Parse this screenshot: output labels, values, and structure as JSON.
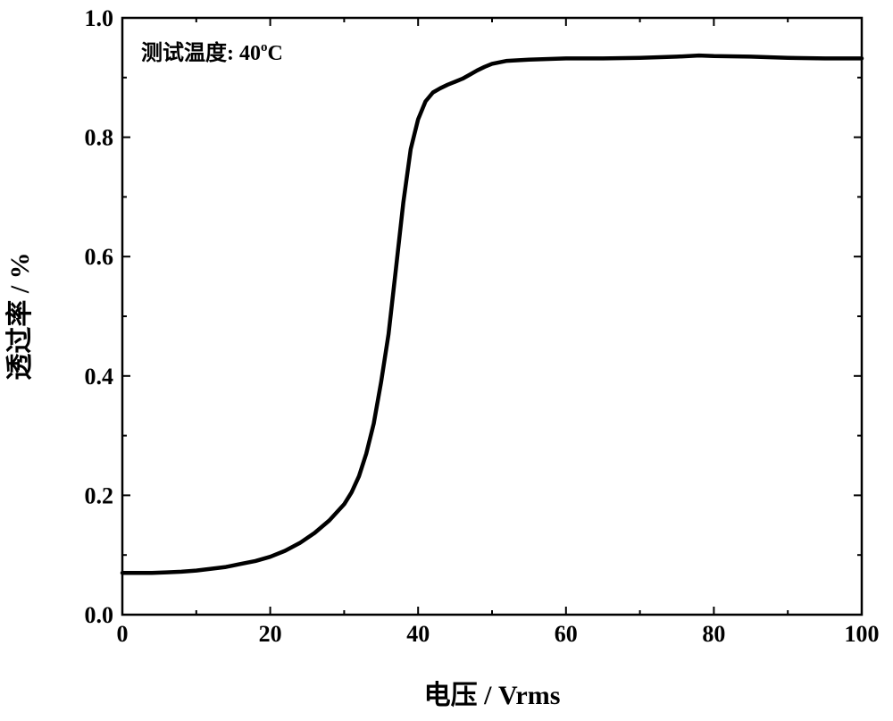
{
  "chart_data": {
    "type": "line",
    "title": "",
    "xlabel": "电压 / Vrms",
    "ylabel": "透过率 / %",
    "xlim": [
      0,
      100
    ],
    "ylim": [
      0.0,
      1.0
    ],
    "xticks": [
      "0",
      "20",
      "40",
      "60",
      "80",
      "100"
    ],
    "yticks": [
      "0.0",
      "0.2",
      "0.4",
      "0.6",
      "0.8",
      "1.0"
    ],
    "annotation": {
      "text": "测试温度: 40",
      "superscript": "o",
      "suffix": "C"
    },
    "grid": false,
    "legend": "none",
    "line_color": "#000000",
    "series": [
      {
        "x": [
          0,
          2,
          4,
          6,
          8,
          10,
          12,
          14,
          16,
          18,
          20,
          22,
          24,
          26,
          28,
          30,
          31,
          32,
          33,
          34,
          35,
          36,
          37,
          38,
          39,
          40,
          41,
          42,
          43,
          44,
          45,
          46,
          47,
          48,
          49,
          50,
          52,
          55,
          60,
          65,
          70,
          75,
          78,
          80,
          85,
          90,
          95,
          100
        ],
        "y": [
          0.07,
          0.07,
          0.07,
          0.071,
          0.072,
          0.074,
          0.077,
          0.08,
          0.085,
          0.09,
          0.097,
          0.107,
          0.12,
          0.137,
          0.158,
          0.185,
          0.205,
          0.232,
          0.27,
          0.32,
          0.39,
          0.47,
          0.58,
          0.69,
          0.78,
          0.83,
          0.86,
          0.875,
          0.882,
          0.888,
          0.893,
          0.898,
          0.905,
          0.912,
          0.918,
          0.923,
          0.928,
          0.93,
          0.932,
          0.932,
          0.933,
          0.935,
          0.937,
          0.936,
          0.935,
          0.933,
          0.932,
          0.932
        ]
      }
    ]
  }
}
